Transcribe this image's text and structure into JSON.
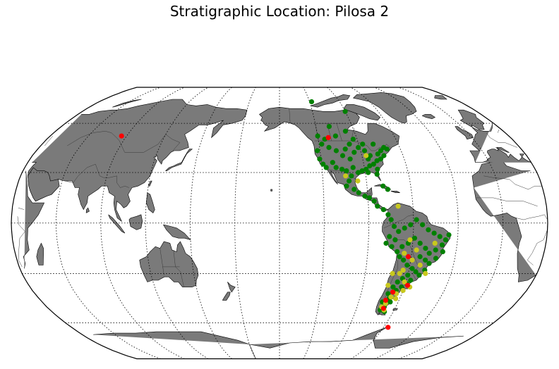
{
  "title": "Stratigraphic Location: Pilosa 2",
  "map": {
    "projection": "Robinson",
    "central_meridian": -150,
    "background_color": "#ffffff",
    "land_color": "#7a7a7a",
    "graticule": {
      "parallels_deg": [
        -60,
        -30,
        0,
        30,
        60
      ],
      "meridians_deg": [
        -150,
        -120,
        -90,
        -60,
        -30,
        0,
        30,
        60,
        90,
        120,
        150,
        180
      ],
      "style": "dotted"
    }
  },
  "legend": {
    "colors": {
      "green": "#008000",
      "yellow": "#c8c81e",
      "red": "#ff0000"
    }
  },
  "points": {
    "green": [
      [
        -109,
        58
      ],
      [
        -120,
        52
      ],
      [
        -118,
        47
      ],
      [
        -113,
        45
      ],
      [
        -108,
        43
      ],
      [
        -104,
        40
      ],
      [
        -99,
        38
      ],
      [
        -95,
        42
      ],
      [
        -91,
        45
      ],
      [
        -87,
        43
      ],
      [
        -84,
        40
      ],
      [
        -80,
        37
      ],
      [
        -78,
        41
      ],
      [
        -75,
        43
      ],
      [
        -72,
        45
      ],
      [
        -70,
        44
      ],
      [
        -122,
        43
      ],
      [
        -121,
        38
      ],
      [
        -119,
        35
      ],
      [
        -117,
        33
      ],
      [
        -112,
        36
      ],
      [
        -110,
        33
      ],
      [
        -106,
        32
      ],
      [
        -103,
        31
      ],
      [
        -98,
        33
      ],
      [
        -95,
        30
      ],
      [
        -92,
        31
      ],
      [
        -89,
        32
      ],
      [
        -86,
        34
      ],
      [
        -83,
        35
      ],
      [
        -81,
        32
      ],
      [
        -82,
        29
      ],
      [
        -100,
        28
      ],
      [
        -102,
        25
      ],
      [
        -104,
        22
      ],
      [
        -99,
        20
      ],
      [
        -96,
        18
      ],
      [
        -92,
        16
      ],
      [
        -89,
        15
      ],
      [
        -86,
        13
      ],
      [
        -84,
        10
      ],
      [
        -80,
        8
      ],
      [
        -77,
        5
      ],
      [
        -75,
        2
      ],
      [
        -73,
        -2
      ],
      [
        -70,
        -5
      ],
      [
        -66,
        -3
      ],
      [
        -62,
        -1
      ],
      [
        -58,
        2
      ],
      [
        -54,
        -1
      ],
      [
        -50,
        -4
      ],
      [
        -46,
        -6
      ],
      [
        -42,
        -8
      ],
      [
        -38,
        -10
      ],
      [
        -36,
        -7
      ],
      [
        -40,
        -13
      ],
      [
        -44,
        -16
      ],
      [
        -48,
        -18
      ],
      [
        -51,
        -15
      ],
      [
        -55,
        -12
      ],
      [
        -59,
        -9
      ],
      [
        -63,
        -12
      ],
      [
        -67,
        -14
      ],
      [
        -70,
        -17
      ],
      [
        -68,
        -20
      ],
      [
        -65,
        -22
      ],
      [
        -62,
        -25
      ],
      [
        -58,
        -27
      ],
      [
        -55,
        -29
      ],
      [
        -52,
        -31
      ],
      [
        -49,
        -28
      ],
      [
        -47,
        -24
      ],
      [
        -60,
        -31
      ],
      [
        -63,
        -33
      ],
      [
        -66,
        -35
      ],
      [
        -68,
        -38
      ],
      [
        -65,
        -40
      ],
      [
        -62,
        -38
      ],
      [
        -59,
        -36
      ],
      [
        -57,
        -34
      ],
      [
        -70,
        -42
      ],
      [
        -68,
        -45
      ],
      [
        -66,
        -47
      ],
      [
        -69,
        -50
      ],
      [
        -71,
        -52
      ],
      [
        -67,
        -53
      ],
      [
        -72,
        -47
      ],
      [
        -118,
        75
      ],
      [
        -90,
        68
      ],
      [
        -97,
        55
      ],
      [
        -93,
        50
      ],
      [
        -87,
        47
      ],
      [
        -79,
        47
      ],
      [
        -115,
        50
      ],
      [
        -106,
        52
      ],
      [
        -86,
        38
      ],
      [
        -88,
        30
      ],
      [
        -77,
        38
      ],
      [
        -74,
        40
      ],
      [
        -97,
        47
      ],
      [
        -101,
        44
      ],
      [
        -79,
        22
      ],
      [
        -76,
        20
      ],
      [
        -72,
        -10
      ],
      [
        -76,
        -8
      ],
      [
        -78,
        -12
      ],
      [
        -74,
        -14
      ],
      [
        -54,
        -20
      ],
      [
        -50,
        -22
      ],
      [
        -43,
        -21
      ],
      [
        -39,
        -17
      ]
    ],
    "yellow": [
      [
        -87,
        40
      ],
      [
        -96,
        25
      ],
      [
        -104,
        28
      ],
      [
        -70,
        10
      ],
      [
        -62,
        -10
      ],
      [
        -57,
        -16
      ],
      [
        -65,
        -18
      ],
      [
        -59,
        -22
      ],
      [
        -64,
        -28
      ],
      [
        -66,
        -30
      ],
      [
        -61,
        -35
      ],
      [
        -64,
        -42
      ],
      [
        -67,
        -44
      ],
      [
        -69,
        -48
      ],
      [
        -71,
        -50
      ],
      [
        -68,
        -52
      ],
      [
        -63,
        -45
      ],
      [
        -60,
        -40
      ],
      [
        -56,
        -38
      ],
      [
        -45,
        -12
      ],
      [
        -48,
        -30
      ],
      [
        -53,
        -25
      ],
      [
        -71,
        -30
      ],
      [
        -72,
        -37
      ]
    ],
    "red": [
      [
        86,
        52
      ],
      [
        -112,
        51
      ],
      [
        -62,
        -20
      ],
      [
        -58,
        -37
      ],
      [
        -67,
        -41
      ],
      [
        -70,
        -46
      ],
      [
        -69,
        -51
      ],
      [
        -56,
        -63
      ]
    ]
  }
}
